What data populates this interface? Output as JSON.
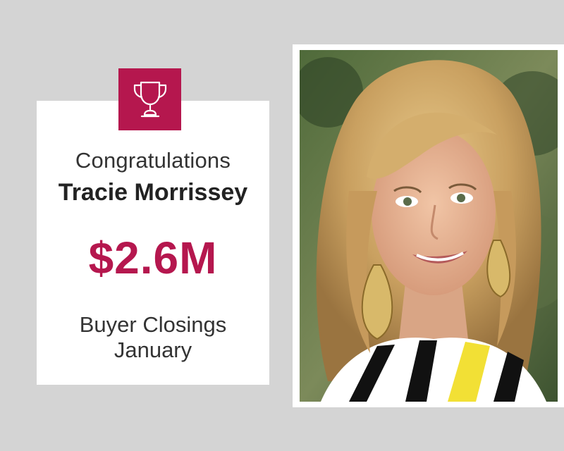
{
  "card": {
    "greeting": "Congratulations",
    "name": "Tracie Morrissey",
    "amount": "$2.6M",
    "category": "Buyer Closings",
    "period": "January",
    "icon": "trophy-icon",
    "accent_color": "#b5174e"
  },
  "photo": {
    "subject": "portrait-photo"
  }
}
